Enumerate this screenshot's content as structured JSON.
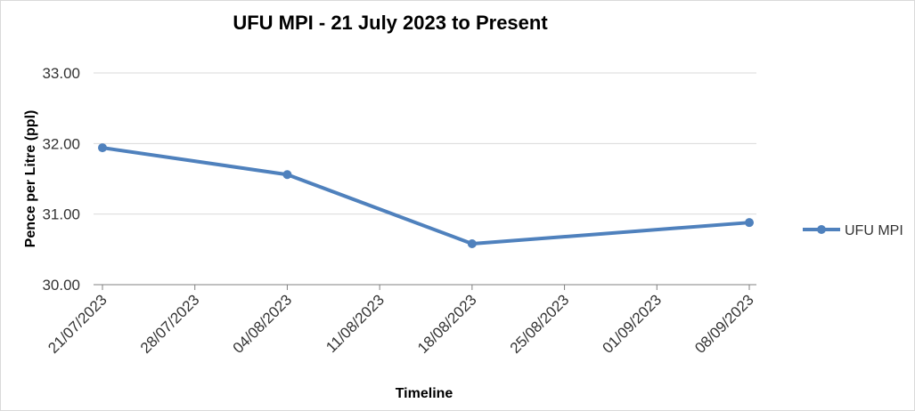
{
  "chart_data": {
    "type": "line",
    "title": "UFU MPI -  21 July 2023 to Present",
    "xlabel": "Timeline",
    "ylabel": "Pence per Litre (ppl)",
    "ylim": [
      30,
      33
    ],
    "yticks": [
      "30.00",
      "31.00",
      "32.00",
      "33.00"
    ],
    "categories": [
      "21/07/2023",
      "28/07/2023",
      "04/08/2023",
      "11/08/2023",
      "18/08/2023",
      "25/08/2023",
      "01/09/2023",
      "08/09/2023"
    ],
    "series": [
      {
        "name": "UFU MPI",
        "color": "#4f81bd",
        "points": [
          {
            "x": "21/07/2023",
            "y": 31.94
          },
          {
            "x": "04/08/2023",
            "y": 31.56
          },
          {
            "x": "18/08/2023",
            "y": 30.58
          },
          {
            "x": "08/09/2023",
            "y": 30.88
          }
        ]
      }
    ],
    "grid": true,
    "legend": "right"
  }
}
